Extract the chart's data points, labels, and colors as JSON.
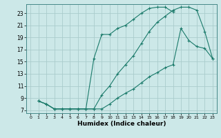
{
  "title": "",
  "xlabel": "Humidex (Indice chaleur)",
  "bg_color": "#cce8e8",
  "line_color": "#1a7a6a",
  "grid_color": "#aacccc",
  "xlim": [
    -0.5,
    23.5
  ],
  "ylim": [
    6.5,
    24.5
  ],
  "xticks": [
    0,
    1,
    2,
    3,
    4,
    5,
    6,
    7,
    8,
    9,
    10,
    11,
    12,
    13,
    14,
    15,
    16,
    17,
    18,
    19,
    20,
    21,
    22,
    23
  ],
  "yticks": [
    7,
    9,
    11,
    13,
    15,
    17,
    19,
    21,
    23
  ],
  "line1_x": [
    1,
    2,
    3,
    4,
    5,
    6,
    7,
    8,
    9,
    10,
    11,
    12,
    13,
    14,
    15,
    16,
    17,
    18,
    19,
    20,
    21,
    22,
    23
  ],
  "line1_y": [
    8.5,
    8.0,
    7.2,
    7.2,
    7.2,
    7.2,
    7.2,
    7.2,
    9.5,
    11.0,
    13.0,
    14.5,
    16.0,
    18.0,
    20.0,
    21.5,
    22.5,
    23.5,
    24.0,
    24.0,
    23.5,
    20.0,
    15.5
  ],
  "line2_x": [
    1,
    2,
    3,
    4,
    5,
    6,
    7,
    8,
    9,
    10,
    11,
    12,
    13,
    14,
    15,
    16,
    17,
    18
  ],
  "line2_y": [
    8.5,
    8.0,
    7.2,
    7.2,
    7.2,
    7.2,
    7.2,
    15.5,
    19.5,
    19.5,
    20.5,
    21.0,
    22.0,
    23.0,
    23.8,
    24.0,
    24.0,
    23.2
  ],
  "line3_x": [
    1,
    2,
    3,
    4,
    5,
    6,
    7,
    8,
    9,
    10,
    11,
    12,
    13,
    14,
    15,
    16,
    17,
    18,
    19,
    20,
    21,
    22,
    23
  ],
  "line3_y": [
    8.5,
    8.0,
    7.2,
    7.2,
    7.2,
    7.2,
    7.2,
    7.2,
    7.2,
    8.0,
    9.0,
    9.8,
    10.5,
    11.5,
    12.5,
    13.2,
    14.0,
    14.5,
    20.5,
    18.5,
    17.5,
    17.2,
    15.5
  ]
}
